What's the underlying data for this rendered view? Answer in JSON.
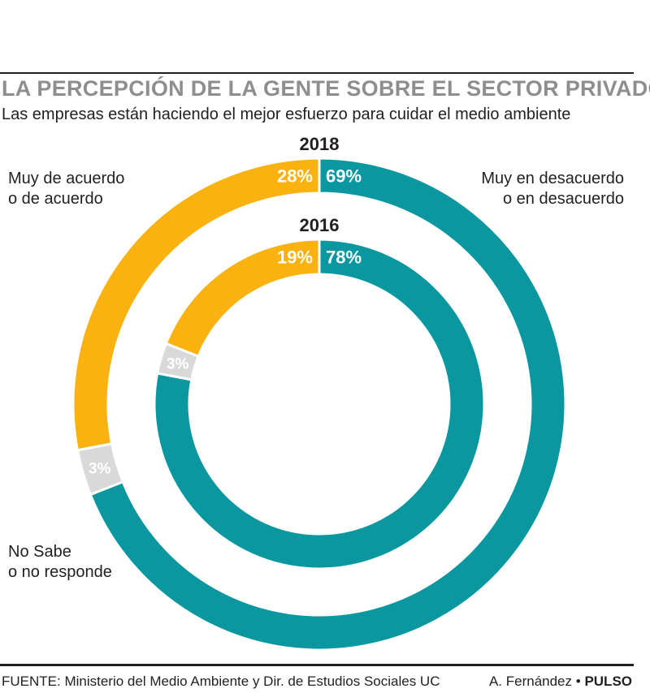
{
  "title": "LA PERCEPCIÓN DE LA GENTE SOBRE EL SECTOR PRIVADO",
  "subtitle": "Las empresas están haciendo el mejor esfuerzo para cuidar el medio ambiente",
  "labels": {
    "agree_line1": "Muy de acuerdo",
    "agree_line2": "o de acuerdo",
    "disagree_line1": "Muy en desacuerdo",
    "disagree_line2": "o en desacuerdo",
    "nosabe_line1": "No Sabe",
    "nosabe_line2": "o no responde"
  },
  "footer": {
    "source": "FUENTE: Ministerio del Medio Ambiente y Dir. de Estudios Sociales UC",
    "author": "A. Fernández",
    "separator": "•",
    "brand": "PULSO"
  },
  "colors": {
    "agree": "#f9b20f",
    "disagree": "#0a97a0",
    "nosabe": "#d9d9d9",
    "text": "#231f20",
    "title": "#8e8e90"
  },
  "chart_data": {
    "type": "pie",
    "categories": [
      "Muy en desacuerdo o en desacuerdo",
      "No Sabe o no responde",
      "Muy de acuerdo o de acuerdo"
    ],
    "series": [
      {
        "name": "2018",
        "values": [
          69,
          3,
          28
        ],
        "value_labels": [
          "69%",
          "3%",
          "28%"
        ]
      },
      {
        "name": "2016",
        "values": [
          78,
          3,
          19
        ],
        "value_labels": [
          "78%",
          "3%",
          "19%"
        ]
      }
    ]
  }
}
